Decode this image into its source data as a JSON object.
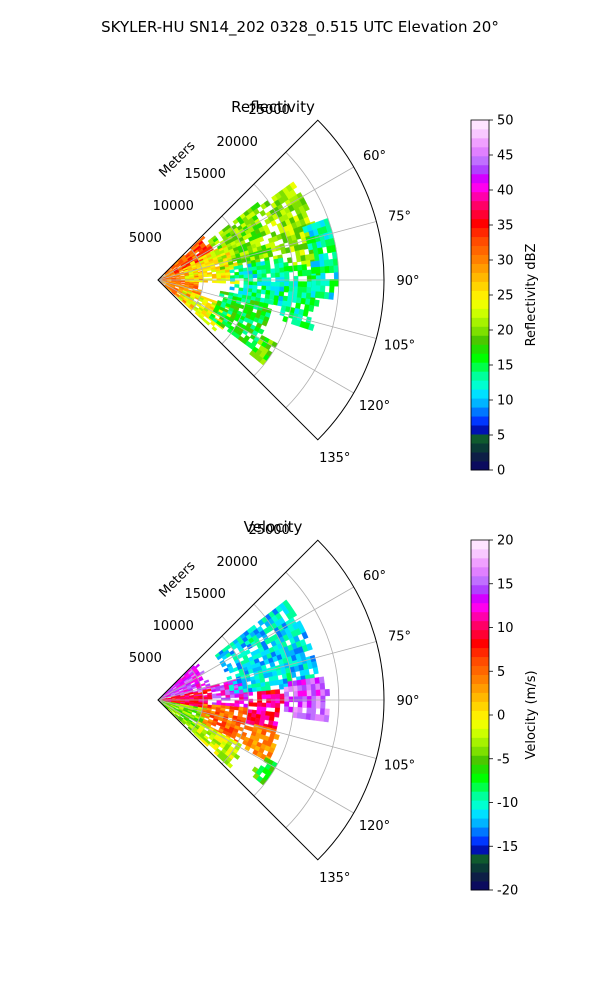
{
  "figure_title": "SKYLER-HU  SN14_202  0328_0.515 UTC Elevation 20°",
  "chart_data": [
    {
      "type": "heatmap",
      "subtype": "polar-sector (radar PPI)",
      "title": "Reflectivity",
      "range_label": "Meters",
      "range_ticks": [
        5000,
        10000,
        15000,
        20000,
        25000
      ],
      "range_tick_labels": [
        "5000",
        "10000",
        "15000",
        "20000",
        "25000"
      ],
      "azimuth_range_deg": [
        45,
        135
      ],
      "azimuth_ticks_deg": [
        60,
        75,
        90,
        105,
        120,
        135
      ],
      "azimuth_tick_labels": [
        "60°",
        "75°",
        "90°",
        "105°",
        "120°",
        "135°"
      ],
      "grid": true,
      "colorbar": {
        "label": "Reflectivity dBZ",
        "vmin": 0,
        "vmax": 50,
        "ticks": [
          0,
          5,
          10,
          15,
          20,
          25,
          30,
          35,
          40,
          45,
          50
        ],
        "tick_labels": [
          "0",
          "5",
          "10",
          "15",
          "20",
          "25",
          "30",
          "35",
          "40",
          "45",
          "50"
        ],
        "colors": [
          "#0b0b5e",
          "#0d1e46",
          "#0a3a36",
          "#0f5a2e",
          "#0011b2",
          "#0037ff",
          "#0077ff",
          "#00b4ff",
          "#00e0ff",
          "#00ffd0",
          "#00ff9c",
          "#00ff4a",
          "#00ff00",
          "#22e000",
          "#4cc800",
          "#7ee000",
          "#a6f200",
          "#ccff00",
          "#eeff00",
          "#ffee00",
          "#ffd400",
          "#ffb800",
          "#ff9c00",
          "#ff8000",
          "#ff6600",
          "#ff4c00",
          "#ff2800",
          "#ff0000",
          "#ff0033",
          "#ff0066",
          "#ff00aa",
          "#ff00ee",
          "#d400ff",
          "#b040ff",
          "#c070ff",
          "#e080ff",
          "#f0a0ff",
          "#f8c8ff",
          "#ffe4ff"
        ]
      },
      "echo_regions": [
        {
          "r": [
            0,
            5000
          ],
          "az": [
            48,
            130
          ],
          "value": 30
        },
        {
          "r": [
            2000,
            7000
          ],
          "az": [
            46,
            70
          ],
          "value": 33
        },
        {
          "r": [
            3000,
            9000
          ],
          "az": [
            62,
            92
          ],
          "value": 25
        },
        {
          "r": [
            3000,
            9000
          ],
          "az": [
            110,
            132
          ],
          "value": 24
        },
        {
          "r": [
            7000,
            14000
          ],
          "az": [
            52,
            80
          ],
          "value": 20
        },
        {
          "r": [
            8000,
            15000
          ],
          "az": [
            80,
            100
          ],
          "value": 13
        },
        {
          "r": [
            7000,
            13000
          ],
          "az": [
            100,
            125
          ],
          "value": 16
        },
        {
          "r": [
            14000,
            18500
          ],
          "az": [
            54,
            84
          ],
          "value": 21
        },
        {
          "r": [
            14000,
            18000
          ],
          "az": [
            84,
            108
          ],
          "value": 14
        },
        {
          "r": [
            17000,
            20000
          ],
          "az": [
            70,
            95
          ],
          "value": 13
        },
        {
          "r": [
            13000,
            15000
          ],
          "az": [
            118,
            128
          ],
          "value": 18
        }
      ]
    },
    {
      "type": "heatmap",
      "subtype": "polar-sector (radar PPI)",
      "title": "Velocity",
      "range_label": "Meters",
      "range_ticks": [
        5000,
        10000,
        15000,
        20000,
        25000
      ],
      "range_tick_labels": [
        "5000",
        "10000",
        "15000",
        "20000",
        "25000"
      ],
      "azimuth_range_deg": [
        45,
        135
      ],
      "azimuth_ticks_deg": [
        60,
        75,
        90,
        105,
        120,
        135
      ],
      "azimuth_tick_labels": [
        "60°",
        "75°",
        "90°",
        "105°",
        "120°",
        "135°"
      ],
      "grid": true,
      "colorbar": {
        "label": "Velocity (m/s)",
        "vmin": -20,
        "vmax": 20,
        "ticks": [
          -20,
          -15,
          -10,
          -5,
          0,
          5,
          10,
          15,
          20
        ],
        "tick_labels": [
          "-20",
          "-15",
          "-10",
          "-5",
          "0",
          "5",
          "10",
          "15",
          "20"
        ],
        "colors": [
          "#0b0b5e",
          "#0d1e46",
          "#0a3a36",
          "#0f5a2e",
          "#0011b2",
          "#0037ff",
          "#0077ff",
          "#00b4ff",
          "#00e0ff",
          "#00ffd0",
          "#00ff9c",
          "#00ff4a",
          "#00ff00",
          "#22e000",
          "#4cc800",
          "#7ee000",
          "#a6f200",
          "#ccff00",
          "#eeff00",
          "#ffee00",
          "#ffd400",
          "#ffb800",
          "#ff9c00",
          "#ff8000",
          "#ff6600",
          "#ff4c00",
          "#ff2800",
          "#ff0000",
          "#ff0033",
          "#ff0066",
          "#ff00aa",
          "#ff00ee",
          "#d400ff",
          "#b040ff",
          "#c070ff",
          "#e080ff",
          "#f0a0ff",
          "#f8c8ff",
          "#ffe4ff"
        ]
      },
      "echo_regions": [
        {
          "r": [
            0,
            6000
          ],
          "az": [
            46,
            78
          ],
          "value": 14
        },
        {
          "r": [
            0,
            6000
          ],
          "az": [
            78,
            100
          ],
          "value": 9
        },
        {
          "r": [
            0,
            6000
          ],
          "az": [
            100,
            132
          ],
          "value": -4
        },
        {
          "r": [
            6000,
            10000
          ],
          "az": [
            75,
            95
          ],
          "value": 13
        },
        {
          "r": [
            5000,
            10000
          ],
          "az": [
            95,
            118
          ],
          "value": 5
        },
        {
          "r": [
            5000,
            11000
          ],
          "az": [
            118,
            132
          ],
          "value": -2
        },
        {
          "r": [
            10000,
            14000
          ],
          "az": [
            85,
            104
          ],
          "value": 10
        },
        {
          "r": [
            10000,
            14000
          ],
          "az": [
            104,
            118
          ],
          "value": 4
        },
        {
          "r": [
            8000,
            18000
          ],
          "az": [
            52,
            84
          ],
          "value": -11
        },
        {
          "r": [
            14000,
            19000
          ],
          "az": [
            82,
            96
          ],
          "value": 15
        },
        {
          "r": [
            13000,
            15000
          ],
          "az": [
            118,
            128
          ],
          "value": -6
        }
      ]
    }
  ]
}
